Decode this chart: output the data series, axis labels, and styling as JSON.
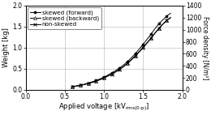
{
  "title": "",
  "ylabel_left": "Weight [kg]",
  "ylabel_right": "Force density [N/m²]",
  "xlim": [
    0,
    2
  ],
  "ylim_left": [
    0,
    2
  ],
  "ylim_right": [
    0,
    1400
  ],
  "xticks": [
    0,
    0.5,
    1,
    1.5,
    2
  ],
  "yticks_left": [
    0,
    0.5,
    1,
    1.5,
    2
  ],
  "yticks_right": [
    0,
    200,
    400,
    600,
    800,
    1000,
    1200,
    1400
  ],
  "skewed_fwd_x": [
    0.6,
    0.65,
    0.7,
    0.75,
    0.8,
    0.85,
    0.9,
    0.95,
    1.0,
    1.05,
    1.1,
    1.15,
    1.2,
    1.25,
    1.3,
    1.35,
    1.4,
    1.45,
    1.5,
    1.55,
    1.6,
    1.65,
    1.7,
    1.75,
    1.8,
    1.85
  ],
  "skewed_fwd_y": [
    0.07,
    0.09,
    0.11,
    0.13,
    0.16,
    0.19,
    0.22,
    0.26,
    0.3,
    0.35,
    0.4,
    0.46,
    0.52,
    0.59,
    0.67,
    0.76,
    0.86,
    0.97,
    1.08,
    1.2,
    1.32,
    1.45,
    1.57,
    1.66,
    1.75,
    1.82
  ],
  "skewed_bwd_x": [
    0.6,
    0.65,
    0.7,
    0.75,
    0.8,
    0.85,
    0.9,
    0.95,
    1.0,
    1.05,
    1.1,
    1.15,
    1.2,
    1.25,
    1.3,
    1.35,
    1.4,
    1.45,
    1.5,
    1.55,
    1.6,
    1.65,
    1.7,
    1.75,
    1.8,
    1.85
  ],
  "skewed_bwd_y": [
    0.07,
    0.09,
    0.11,
    0.13,
    0.155,
    0.18,
    0.21,
    0.245,
    0.285,
    0.33,
    0.375,
    0.43,
    0.49,
    0.555,
    0.63,
    0.715,
    0.81,
    0.91,
    1.01,
    1.12,
    1.23,
    1.35,
    1.46,
    1.56,
    1.65,
    1.72
  ],
  "non_skewed_x": [
    0.6,
    0.65,
    0.7,
    0.75,
    0.8,
    0.85,
    0.9,
    0.95,
    1.0,
    1.05,
    1.1,
    1.15,
    1.2,
    1.25,
    1.3,
    1.35,
    1.4,
    1.45,
    1.5,
    1.55,
    1.6,
    1.65,
    1.7,
    1.75,
    1.8,
    1.85
  ],
  "non_skewed_y": [
    0.07,
    0.09,
    0.105,
    0.125,
    0.15,
    0.175,
    0.205,
    0.24,
    0.28,
    0.325,
    0.37,
    0.425,
    0.485,
    0.55,
    0.625,
    0.71,
    0.8,
    0.9,
    1.0,
    1.11,
    1.22,
    1.34,
    1.455,
    1.555,
    1.645,
    1.71
  ],
  "line_color": "#000000",
  "bg_color": "#ffffff",
  "grid_color": "#b0b0b0",
  "legend_fontsize": 5.2,
  "axis_label_fontsize": 6.0,
  "tick_fontsize": 5.5,
  "ylabel_right_fontsize": 5.5
}
